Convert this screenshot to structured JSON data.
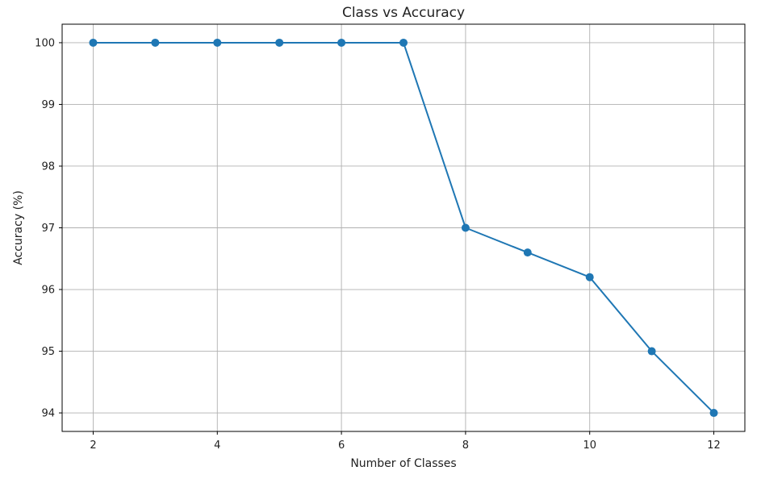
{
  "chart_data": {
    "type": "line",
    "title": "Class vs Accuracy",
    "xlabel": "Number of Classes",
    "ylabel": "Accuracy (%)",
    "x": [
      2,
      3,
      4,
      5,
      6,
      7,
      8,
      9,
      10,
      11,
      12
    ],
    "series": [
      {
        "values": [
          100,
          100,
          100,
          100,
          100,
          100,
          97,
          96.6,
          96.2,
          95,
          94
        ],
        "color": "#1f77b4",
        "marker": "circle"
      }
    ],
    "xlim": [
      1.5,
      12.5
    ],
    "ylim": [
      93.7,
      100.3
    ],
    "xticks": [
      2,
      4,
      6,
      8,
      10,
      12
    ],
    "yticks": [
      94,
      95,
      96,
      97,
      98,
      99,
      100
    ],
    "grid": true,
    "legend": false
  }
}
